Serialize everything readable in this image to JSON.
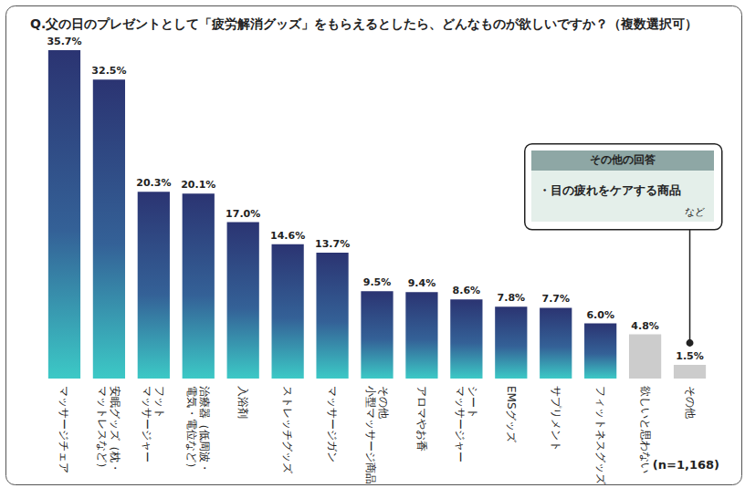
{
  "chart_data": {
    "type": "bar",
    "title": "Q.父の日のプレゼントとして「疲労解消グッズ」をもらえるとしたら、どんなものが欲しいですか？（複数選択可）",
    "categories": [
      "マッサージチェア",
      "安眠グッズ（枕・\nマットレスなど）",
      "フット\nマッサージャー",
      "治療器（低周波・\n電気・電位など）",
      "入浴剤",
      "ストレッチグッズ",
      "マッサージガン",
      "その他\n小型マッサージ商品",
      "アロマやお香",
      "シート\nマッサージャー",
      "EMSグッズ",
      "サプリメント",
      "フィットネスグッズ",
      "欲しいと思わない",
      "その他"
    ],
    "values": [
      35.7,
      32.5,
      20.3,
      20.1,
      17.0,
      14.6,
      13.7,
      9.5,
      9.4,
      8.6,
      7.8,
      7.7,
      6.0,
      4.8,
      1.5
    ],
    "value_labels": [
      "35.7%",
      "32.5%",
      "20.3%",
      "20.1%",
      "17.0%",
      "14.6%",
      "13.7%",
      "9.5%",
      "9.4%",
      "8.6%",
      "7.8%",
      "7.7%",
      "6.0%",
      "4.8%",
      "1.5%"
    ],
    "colors": [
      "#2b3472",
      "#2b3472",
      "#2b3472",
      "#2b3472",
      "#2b3472",
      "#2b3472",
      "#2b3472",
      "#2b3472",
      "#2b3472",
      "#2b3472",
      "#2b3472",
      "#2b3472",
      "#2b3472",
      "#cccccc",
      "#cccccc"
    ],
    "ylim": [
      0,
      37
    ],
    "grid": false,
    "tick_labels": "x",
    "data_labels": true,
    "annotations": {
      "note": "(n=1,168)",
      "callout": {
        "title": "その他の回答",
        "items": [
          "・目の疲れをケアする商品"
        ],
        "footer": "など"
      }
    }
  }
}
